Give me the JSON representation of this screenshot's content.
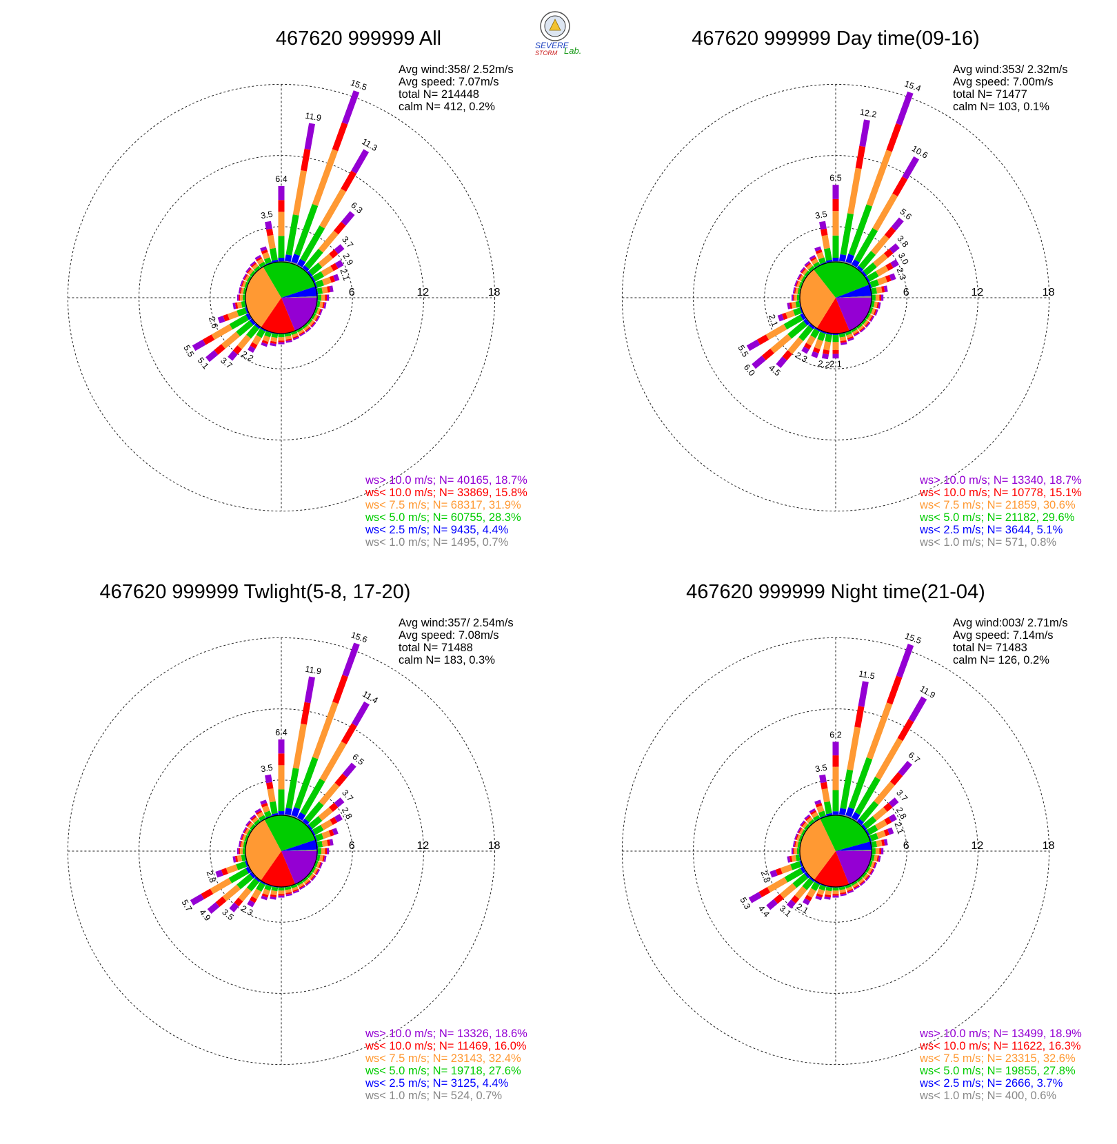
{
  "colors": {
    "ws_gt10": "#9400d3",
    "ws_lt10": "#ff0000",
    "ws_lt7_5": "#ff9933",
    "ws_lt5": "#00cc00",
    "ws_lt2_5": "#0000ff",
    "ws_lt1": "#888888"
  },
  "logo": {
    "text_line1": "SEVERE",
    "text_line2": "STORM",
    "text_lab": "Lab."
  },
  "chart_data": [
    {
      "type": "wind-rose",
      "title": "467620 999999 All",
      "rings": [
        6,
        12,
        18
      ],
      "ring_labels": [
        "6",
        "12",
        "18"
      ],
      "info": {
        "line1": "Avg wind:358/ 2.52m/s",
        "line2": "Avg speed: 7.07m/s",
        "line3": "total N=      214448",
        "line4": "calm N=    412,   0.2%"
      },
      "pie": [
        {
          "class": "ws_gt10",
          "percent": 18.7
        },
        {
          "class": "ws_lt10",
          "percent": 15.8
        },
        {
          "class": "ws_lt7_5",
          "percent": 31.9
        },
        {
          "class": "ws_lt5",
          "percent": 28.3
        },
        {
          "class": "ws_lt2_5",
          "percent": 4.4
        },
        {
          "class": "ws_lt1",
          "percent": 0.7
        }
      ],
      "legend": [
        {
          "text": "ws> 10.0 m/s; N= 40165, 18.7%",
          "class": "ws_gt10"
        },
        {
          "text": "ws< 10.0 m/s; N= 33869, 15.8%",
          "class": "ws_lt10"
        },
        {
          "text": "ws<  7.5 m/s; N= 68317, 31.9%",
          "class": "ws_lt7_5"
        },
        {
          "text": "ws<  5.0 m/s; N= 60755, 28.3%",
          "class": "ws_lt5"
        },
        {
          "text": "ws<  2.5 m/s; N=  9435,  4.4%",
          "class": "ws_lt2_5"
        },
        {
          "text": "ws<  1.0 m/s; N=  1495,  0.7%",
          "class": "ws_lt1"
        }
      ],
      "directions": [
        0,
        10,
        20,
        30,
        40,
        50,
        60,
        70,
        80,
        90,
        100,
        110,
        120,
        130,
        140,
        150,
        160,
        170,
        180,
        190,
        200,
        210,
        220,
        230,
        240,
        250,
        260,
        270,
        280,
        290,
        300,
        310,
        320,
        330,
        340,
        350
      ],
      "frequencies": [
        6.4,
        11.9,
        15.5,
        11.3,
        6.3,
        3.7,
        2.9,
        2.1,
        1.4,
        1.0,
        0.8,
        0.6,
        0.6,
        0.6,
        0.6,
        0.6,
        0.7,
        0.8,
        0.9,
        1.1,
        1.3,
        2.2,
        3.7,
        5.1,
        5.5,
        2.6,
        1.1,
        0.7,
        0.6,
        0.6,
        0.6,
        0.7,
        0.8,
        1.0,
        1.5,
        3.5
      ],
      "labels": {
        "0": "6.4",
        "10": "11.9",
        "20": "15.5",
        "30": "11.3",
        "40": "6.3",
        "50": "3.7",
        "60": "2.9",
        "70": "2.1",
        "210": "2.2",
        "220": "3.7",
        "230": "5.1",
        "240": "5.5",
        "250": "2.6",
        "350": "3.5"
      }
    },
    {
      "type": "wind-rose",
      "title": "467620 999999 Day time(09-16)",
      "rings": [
        6,
        12,
        18
      ],
      "ring_labels": [
        "6",
        "12",
        "18"
      ],
      "info": {
        "line1": "Avg wind:353/ 2.32m/s",
        "line2": "Avg speed: 7.00m/s",
        "line3": "total N=       71477",
        "line4": "calm N=    103,   0.1%"
      },
      "pie": [
        {
          "class": "ws_gt10",
          "percent": 18.7
        },
        {
          "class": "ws_lt10",
          "percent": 15.1
        },
        {
          "class": "ws_lt7_5",
          "percent": 30.6
        },
        {
          "class": "ws_lt5",
          "percent": 29.6
        },
        {
          "class": "ws_lt2_5",
          "percent": 5.1
        },
        {
          "class": "ws_lt1",
          "percent": 0.8
        }
      ],
      "legend": [
        {
          "text": "ws> 10.0 m/s; N= 13340, 18.7%",
          "class": "ws_gt10"
        },
        {
          "text": "ws< 10.0 m/s; N= 10778, 15.1%",
          "class": "ws_lt10"
        },
        {
          "text": "ws<  7.5 m/s; N= 21859, 30.6%",
          "class": "ws_lt7_5"
        },
        {
          "text": "ws<  5.0 m/s; N= 21182, 29.6%",
          "class": "ws_lt5"
        },
        {
          "text": "ws<  2.5 m/s; N=  3644,  5.1%",
          "class": "ws_lt2_5"
        },
        {
          "text": "ws<  1.0 m/s; N=   571,  0.8%",
          "class": "ws_lt1"
        }
      ],
      "directions": [
        0,
        10,
        20,
        30,
        40,
        50,
        60,
        70,
        80,
        90,
        100,
        110,
        120,
        130,
        140,
        150,
        160,
        170,
        180,
        190,
        200,
        210,
        220,
        230,
        240,
        250,
        260,
        270,
        280,
        290,
        300,
        310,
        320,
        330,
        340,
        350
      ],
      "frequencies": [
        6.5,
        12.2,
        15.4,
        10.6,
        5.6,
        3.8,
        3.0,
        2.3,
        1.4,
        1.0,
        0.8,
        0.7,
        0.6,
        0.6,
        0.6,
        0.6,
        0.8,
        1.0,
        2.1,
        2.2,
        2.3,
        2.3,
        4.5,
        6.0,
        5.5,
        2.1,
        1.1,
        0.7,
        0.6,
        0.6,
        0.6,
        0.7,
        0.8,
        1.0,
        1.5,
        3.5
      ],
      "labels": {
        "0": "6.5",
        "10": "12.2",
        "20": "15.4",
        "30": "10.6",
        "40": "5.6",
        "50": "3.8",
        "60": "3.0",
        "70": "2.3",
        "180": "2.1",
        "190": "2.2",
        "210": "2.3",
        "220": "4.5",
        "230": "6.0",
        "240": "5.5",
        "250": "2.1",
        "350": "3.5"
      }
    },
    {
      "type": "wind-rose",
      "title": "467620 999999 Twlight(5-8, 17-20)",
      "rings": [
        6,
        12,
        18
      ],
      "ring_labels": [
        "6",
        "12",
        "18"
      ],
      "info": {
        "line1": "Avg wind:357/ 2.54m/s",
        "line2": "Avg speed: 7.08m/s",
        "line3": "total N=       71488",
        "line4": "calm N=    183,   0.3%"
      },
      "pie": [
        {
          "class": "ws_gt10",
          "percent": 18.6
        },
        {
          "class": "ws_lt10",
          "percent": 16.0
        },
        {
          "class": "ws_lt7_5",
          "percent": 32.4
        },
        {
          "class": "ws_lt5",
          "percent": 27.6
        },
        {
          "class": "ws_lt2_5",
          "percent": 4.4
        },
        {
          "class": "ws_lt1",
          "percent": 0.7
        }
      ],
      "legend": [
        {
          "text": "ws> 10.0 m/s; N= 13326, 18.6%",
          "class": "ws_gt10"
        },
        {
          "text": "ws< 10.0 m/s; N= 11469, 16.0%",
          "class": "ws_lt10"
        },
        {
          "text": "ws<  7.5 m/s; N= 23143, 32.4%",
          "class": "ws_lt7_5"
        },
        {
          "text": "ws<  5.0 m/s; N= 19718, 27.6%",
          "class": "ws_lt5"
        },
        {
          "text": "ws<  2.5 m/s; N=  3125,  4.4%",
          "class": "ws_lt2_5"
        },
        {
          "text": "ws<  1.0 m/s; N=   524,  0.7%",
          "class": "ws_lt1"
        }
      ],
      "directions": [
        0,
        10,
        20,
        30,
        40,
        50,
        60,
        70,
        80,
        90,
        100,
        110,
        120,
        130,
        140,
        150,
        160,
        170,
        180,
        190,
        200,
        210,
        220,
        230,
        240,
        250,
        260,
        270,
        280,
        290,
        300,
        310,
        320,
        330,
        340,
        350
      ],
      "frequencies": [
        6.4,
        11.9,
        15.6,
        11.4,
        6.5,
        3.7,
        2.8,
        2.0,
        1.4,
        1.0,
        0.8,
        0.6,
        0.6,
        0.6,
        0.6,
        0.6,
        0.7,
        0.8,
        0.9,
        1.1,
        1.3,
        2.3,
        3.5,
        4.9,
        5.7,
        2.8,
        1.1,
        0.7,
        0.6,
        0.6,
        0.6,
        0.7,
        0.8,
        1.0,
        1.5,
        3.5
      ],
      "labels": {
        "0": "6.4",
        "10": "11.9",
        "20": "15.6",
        "30": "11.4",
        "40": "6.5",
        "50": "3.7",
        "60": "2.8",
        "210": "2.3",
        "220": "3.5",
        "230": "4.9",
        "240": "5.7",
        "250": "2.8",
        "350": "3.5"
      }
    },
    {
      "type": "wind-rose",
      "title": "467620 999999 Night time(21-04)",
      "rings": [
        6,
        12,
        18
      ],
      "ring_labels": [
        "6",
        "12",
        "18"
      ],
      "info": {
        "line1": "Avg wind:003/ 2.71m/s",
        "line2": "Avg speed: 7.14m/s",
        "line3": "total N=       71483",
        "line4": "calm N=    126,   0.2%"
      },
      "pie": [
        {
          "class": "ws_gt10",
          "percent": 18.9
        },
        {
          "class": "ws_lt10",
          "percent": 16.3
        },
        {
          "class": "ws_lt7_5",
          "percent": 32.6
        },
        {
          "class": "ws_lt5",
          "percent": 27.8
        },
        {
          "class": "ws_lt2_5",
          "percent": 3.7
        },
        {
          "class": "ws_lt1",
          "percent": 0.6
        }
      ],
      "legend": [
        {
          "text": "ws> 10.0 m/s; N= 13499, 18.9%",
          "class": "ws_gt10"
        },
        {
          "text": "ws< 10.0 m/s; N= 11622, 16.3%",
          "class": "ws_lt10"
        },
        {
          "text": "ws<  7.5 m/s; N= 23315, 32.6%",
          "class": "ws_lt7_5"
        },
        {
          "text": "ws<  5.0 m/s; N= 19855, 27.8%",
          "class": "ws_lt5"
        },
        {
          "text": "ws<  2.5 m/s; N=  2666,  3.7%",
          "class": "ws_lt2_5"
        },
        {
          "text": "ws<  1.0 m/s; N=   400,  0.6%",
          "class": "ws_lt1"
        }
      ],
      "directions": [
        0,
        10,
        20,
        30,
        40,
        50,
        60,
        70,
        80,
        90,
        100,
        110,
        120,
        130,
        140,
        150,
        160,
        170,
        180,
        190,
        200,
        210,
        220,
        230,
        240,
        250,
        260,
        270,
        280,
        290,
        300,
        310,
        320,
        330,
        340,
        350
      ],
      "frequencies": [
        6.2,
        11.5,
        15.5,
        11.9,
        6.7,
        3.7,
        2.8,
        2.1,
        1.4,
        1.0,
        0.8,
        0.6,
        0.6,
        0.6,
        0.6,
        0.6,
        0.7,
        0.8,
        0.9,
        1.1,
        1.3,
        2.1,
        3.1,
        4.4,
        5.3,
        2.8,
        1.1,
        0.7,
        0.6,
        0.6,
        0.6,
        0.7,
        0.8,
        1.0,
        1.5,
        3.5
      ],
      "labels": {
        "0": "6.2",
        "10": "11.5",
        "20": "15.5",
        "30": "11.9",
        "40": "6.7",
        "50": "3.7",
        "60": "2.8",
        "70": "2.1",
        "210": "2.1",
        "220": "3.1",
        "230": "4.4",
        "240": "5.3",
        "250": "2.8",
        "350": "3.5"
      }
    }
  ]
}
